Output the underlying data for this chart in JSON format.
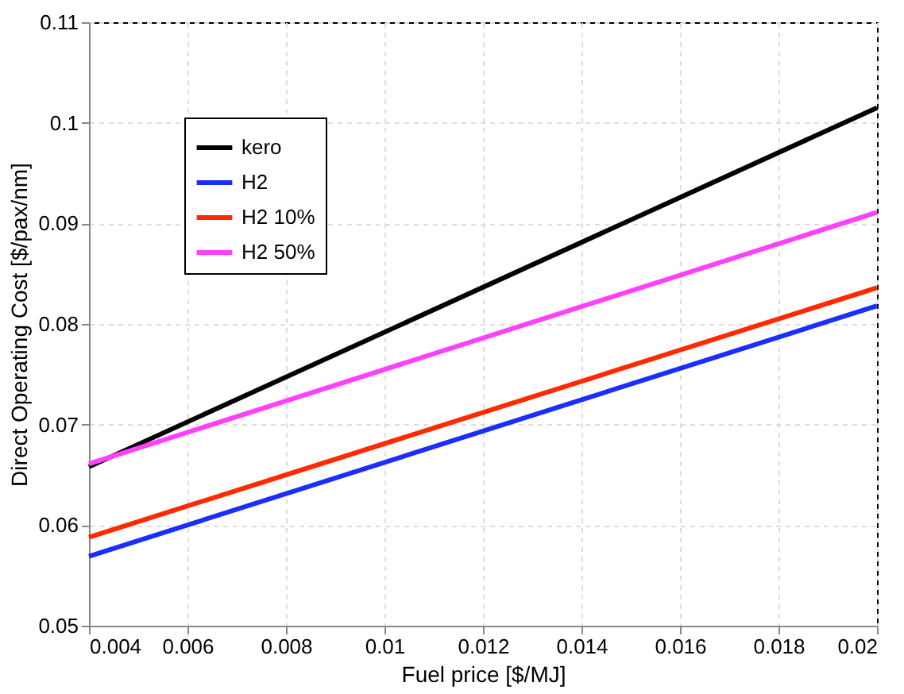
{
  "chart_data": {
    "type": "line",
    "xlabel": "Fuel price  [$/MJ]",
    "ylabel": "Direct Operating Cost [$/pax/nm]",
    "x": [
      0.004,
      0.02
    ],
    "series": [
      {
        "name": "kero",
        "color": "#000000",
        "values": [
          0.0658,
          0.1015
        ]
      },
      {
        "name": "H2",
        "color": "#1a2fff",
        "values": [
          0.0569,
          0.0818
        ]
      },
      {
        "name": "H2 10%",
        "color": "#ff2a00",
        "values": [
          0.0588,
          0.0836
        ]
      },
      {
        "name": "H2 50%",
        "color": "#ff40ff",
        "values": [
          0.0661,
          0.0911
        ]
      }
    ],
    "xlim": [
      0.004,
      0.02
    ],
    "xticks": [
      0.004,
      0.006,
      0.008,
      0.01,
      0.012,
      0.014,
      0.016,
      0.018,
      0.02
    ],
    "ylim": [
      0.05,
      0.11
    ],
    "yticks": [
      0.05,
      0.06,
      0.07,
      0.08,
      0.09,
      0.1,
      0.11
    ],
    "grid": true,
    "legend": "top left",
    "line_style": "solid",
    "marker": "none"
  }
}
